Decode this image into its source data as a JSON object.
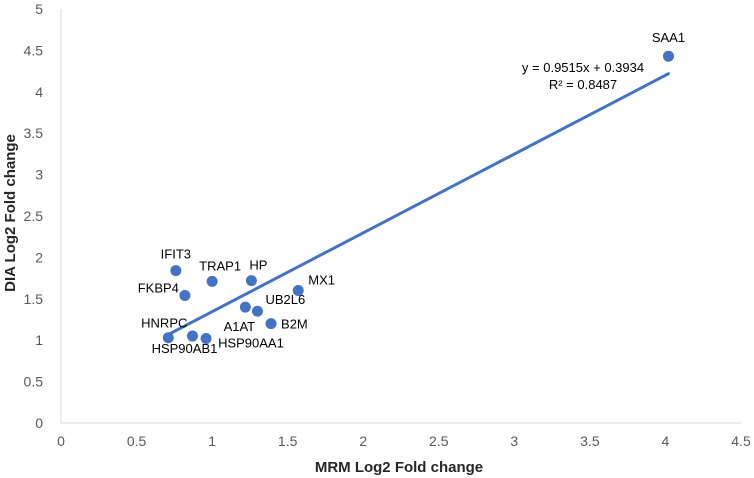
{
  "chart_data": {
    "type": "scatter",
    "title": "",
    "xlabel": "MRM Log2 Fold change",
    "ylabel": "DIA Log2 Fold change",
    "xlim": [
      0,
      4.5
    ],
    "ylim": [
      0,
      5
    ],
    "x_ticks": [
      "0",
      "0.5",
      "1",
      "1.5",
      "2",
      "2.5",
      "3",
      "3.5",
      "4",
      "4.5"
    ],
    "y_ticks": [
      "0",
      "0.5",
      "1",
      "1.5",
      "2",
      "2.5",
      "3",
      "3.5",
      "4",
      "4.5",
      "5"
    ],
    "grid": false,
    "legend": "none",
    "colors": {
      "marker": "#4472C4",
      "trendline": "#4472C4",
      "axis": "#D9D9D9"
    },
    "points": [
      {
        "label": "SAA1",
        "x": 4.02,
        "y": 4.43
      },
      {
        "label": "IFIT3",
        "x": 0.76,
        "y": 1.84
      },
      {
        "label": "TRAP1",
        "x": 1.0,
        "y": 1.71
      },
      {
        "label": "HP",
        "x": 1.26,
        "y": 1.72
      },
      {
        "label": "FKBP4",
        "x": 0.82,
        "y": 1.54
      },
      {
        "label": "MX1",
        "x": 1.57,
        "y": 1.6
      },
      {
        "label": "UB2L6",
        "x": 1.3,
        "y": 1.35
      },
      {
        "label": "A1AT",
        "x": 1.22,
        "y": 1.4
      },
      {
        "label": "B2M",
        "x": 1.39,
        "y": 1.2
      },
      {
        "label": "HNRPC",
        "x": 0.71,
        "y": 1.03
      },
      {
        "label": "HSP90AB1",
        "x": 0.87,
        "y": 1.05
      },
      {
        "label": "HSP90AA1",
        "x": 0.96,
        "y": 1.02
      }
    ],
    "trendline": {
      "slope": 0.9515,
      "intercept": 0.3934,
      "x_range": [
        0.7,
        4.02
      ],
      "equation": "y = 0.9515x + 0.3934",
      "r_squared": "R² = 0.8487"
    }
  }
}
